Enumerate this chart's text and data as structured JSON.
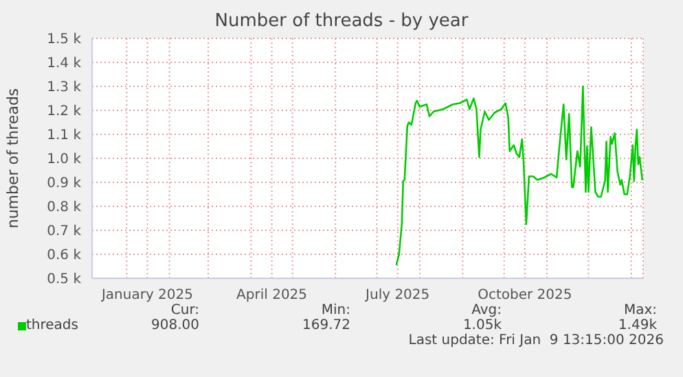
{
  "chart_data": {
    "type": "line",
    "title": "Number of threads - by year",
    "ylabel": "number of threads",
    "x": [
      "2025-07-15",
      "2025-07-17",
      "2025-07-19",
      "2025-07-20",
      "2025-07-21",
      "2025-07-23",
      "2025-07-24",
      "2025-07-26",
      "2025-07-29",
      "2025-07-30",
      "2025-08-01",
      "2025-08-06",
      "2025-08-08",
      "2025-08-11",
      "2025-08-18",
      "2025-08-25",
      "2025-08-30",
      "2025-09-04",
      "2025-09-06",
      "2025-09-09",
      "2025-09-11",
      "2025-09-13",
      "2025-09-14",
      "2025-09-17",
      "2025-09-20",
      "2025-09-24",
      "2025-09-29",
      "2025-10-02",
      "2025-10-04",
      "2025-10-05",
      "2025-10-08",
      "2025-10-10",
      "2025-10-12",
      "2025-10-14",
      "2025-10-15",
      "2025-10-17",
      "2025-10-19",
      "2025-10-22",
      "2025-10-25",
      "2025-10-30",
      "2025-11-04",
      "2025-11-08",
      "2025-11-10",
      "2025-11-13",
      "2025-11-15",
      "2025-11-17",
      "2025-11-19",
      "2025-11-20",
      "2025-11-23",
      "2025-11-25",
      "2025-11-27",
      "2025-11-29",
      "2025-11-30",
      "2025-12-01",
      "2025-12-03",
      "2025-12-06",
      "2025-12-08",
      "2025-12-10",
      "2025-12-13",
      "2025-12-14",
      "2025-12-15",
      "2025-12-17",
      "2025-12-18",
      "2025-12-20",
      "2025-12-22",
      "2025-12-24",
      "2025-12-25",
      "2025-12-27",
      "2025-12-29",
      "2025-12-31",
      "2026-01-02",
      "2026-01-03",
      "2026-01-04",
      "2026-01-05",
      "2026-01-06",
      "2026-01-07",
      "2026-01-09"
    ],
    "series": [
      {
        "name": "threads",
        "color": "#00cc00",
        "values": [
          555,
          600,
          725,
          905,
          910,
          1135,
          1150,
          1140,
          1230,
          1240,
          1215,
          1225,
          1175,
          1195,
          1205,
          1225,
          1230,
          1245,
          1205,
          1250,
          1205,
          1005,
          1120,
          1195,
          1160,
          1190,
          1205,
          1230,
          1170,
          1030,
          1055,
          1020,
          1005,
          1080,
          995,
          725,
          925,
          925,
          910,
          920,
          935,
          920,
          1050,
          1225,
          995,
          1185,
          880,
          880,
          1030,
          965,
          1300,
          860,
          1050,
          860,
          1130,
          860,
          840,
          840,
          905,
          1070,
          860,
          1090,
          1060,
          1105,
          945,
          890,
          910,
          850,
          850,
          925,
          1055,
          905,
          1050,
          1120,
          975,
          1005,
          908
        ]
      }
    ],
    "xlim": [
      "2024-12-07",
      "2026-01-09T13:15"
    ],
    "xticks": [
      {
        "value": "2025-01-01",
        "label": null
      },
      {
        "value": "2025-01-16",
        "label": "January 2025"
      },
      {
        "value": "2025-02-01",
        "label": null
      },
      {
        "value": "2025-03-01",
        "label": null
      },
      {
        "value": "2025-04-01",
        "label": null
      },
      {
        "value": "2025-04-16",
        "label": "April 2025"
      },
      {
        "value": "2025-05-01",
        "label": null
      },
      {
        "value": "2025-06-01",
        "label": null
      },
      {
        "value": "2025-07-01",
        "label": null
      },
      {
        "value": "2025-07-16",
        "label": "July 2025"
      },
      {
        "value": "2025-08-01",
        "label": null
      },
      {
        "value": "2025-09-01",
        "label": null
      },
      {
        "value": "2025-10-01",
        "label": null
      },
      {
        "value": "2025-10-16",
        "label": "October 2025"
      },
      {
        "value": "2025-11-01",
        "label": null
      },
      {
        "value": "2025-12-01",
        "label": null
      },
      {
        "value": "2026-01-01",
        "label": null
      }
    ],
    "ylim": [
      500,
      1500
    ],
    "yticks": [
      {
        "value": 500,
        "label": "0.5 k"
      },
      {
        "value": 600,
        "label": "0.6 k"
      },
      {
        "value": 700,
        "label": "0.7 k"
      },
      {
        "value": 800,
        "label": "0.8 k"
      },
      {
        "value": 900,
        "label": "0.9 k"
      },
      {
        "value": 1000,
        "label": "1.0 k"
      },
      {
        "value": 1100,
        "label": "1.1 k"
      },
      {
        "value": 1200,
        "label": "1.2 k"
      },
      {
        "value": 1300,
        "label": "1.3 k"
      },
      {
        "value": 1400,
        "label": "1.4 k"
      },
      {
        "value": 1500,
        "label": "1.5 k"
      }
    ],
    "grid": true,
    "legend": "bottom left",
    "marker": "none",
    "line_style": "solid",
    "annotations": [
      "Cur:",
      "Min:",
      "Avg:",
      "Max:",
      "908.00",
      "169.72",
      "1.05k",
      "1.49k",
      "Last update: Fri Jan  9 13:15:00 2026"
    ]
  }
}
